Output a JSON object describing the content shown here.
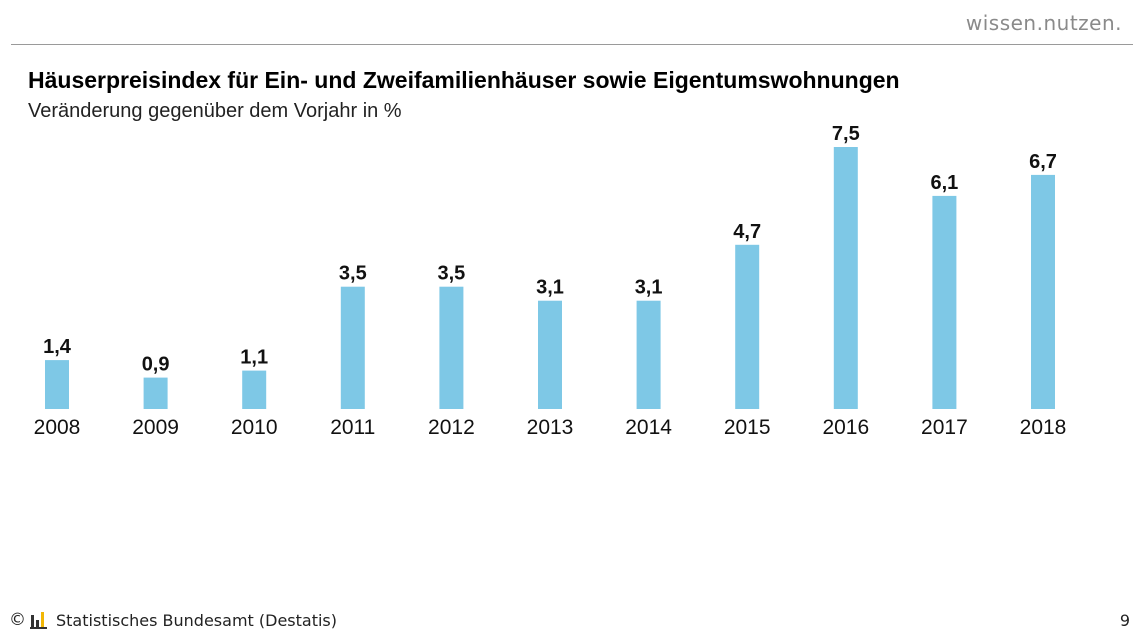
{
  "header": {
    "brand": "wissen.nutzen."
  },
  "footer": {
    "copyright_symbol": "©",
    "source": "Statistisches Bundesamt (Destatis)",
    "page_number": "9"
  },
  "colors": {
    "bar": "#7ec8e6",
    "logo_dark": "#333333",
    "logo_accent": "#f2b705"
  },
  "icons": {
    "copyright": "copyright-icon",
    "logo": "destatis-logo-icon"
  },
  "chart_data": {
    "type": "bar",
    "title": "Häuserpreisindex für Ein- und Zweifamilienhäuser sowie Eigentumswohnungen",
    "subtitle": "Veränderung gegenüber dem Vorjahr in %",
    "categories": [
      "2008",
      "2009",
      "2010",
      "2011",
      "2012",
      "2013",
      "2014",
      "2015",
      "2016",
      "2017",
      "2018"
    ],
    "values": [
      1.4,
      0.9,
      1.1,
      3.5,
      3.5,
      3.1,
      3.1,
      4.7,
      7.5,
      6.1,
      6.7
    ],
    "value_labels": [
      "1,4",
      "0,9",
      "1,1",
      "3,5",
      "3,5",
      "3,1",
      "3,1",
      "4,7",
      "7,5",
      "6,1",
      "6,7"
    ],
    "ylim": [
      0,
      7.5
    ],
    "grid": false,
    "legend": "none"
  }
}
